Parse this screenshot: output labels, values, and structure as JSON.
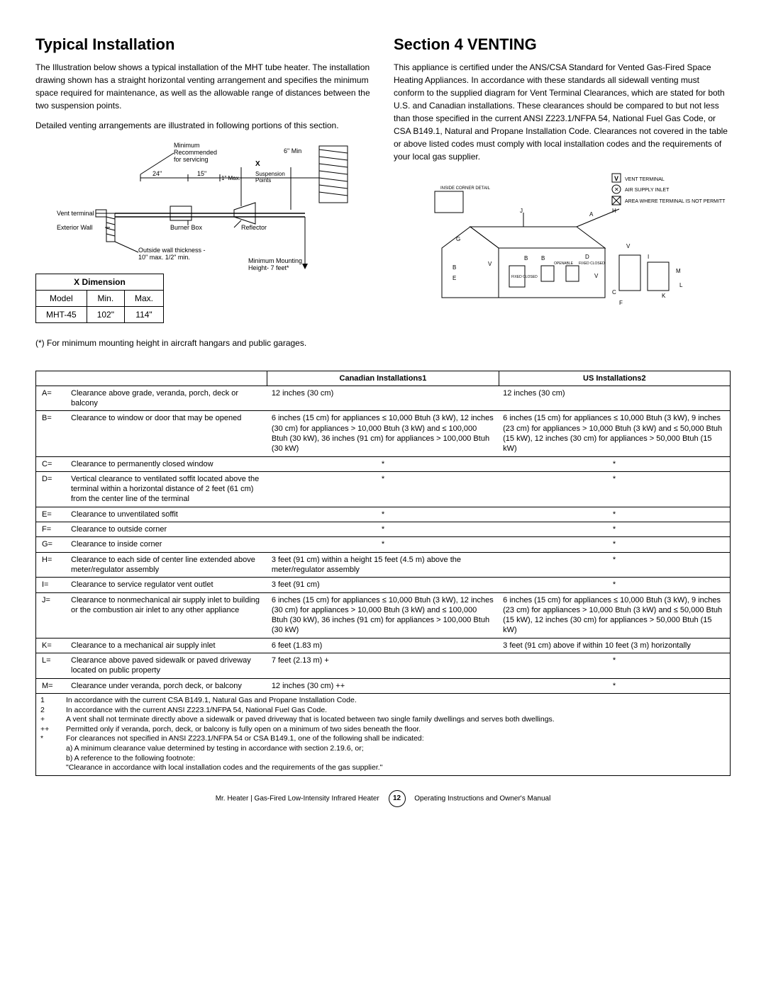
{
  "left": {
    "heading": "Typical Installation",
    "p1": "The Illustration below shows a typical installation of the MHT tube heater. The installation drawing shown has a straight horizontal venting arrangement and specifies the minimum space required for maintenance, as well as the allowable range of distances between the two suspension points.",
    "p2": "Detailed venting arrangements are illustrated in following portions of this section.",
    "diagram": {
      "min_rec": "Minimum Recommended for servicing",
      "six_min": "6\" Min",
      "dim24": "24\"",
      "dim15": "15\"",
      "one_max": "1\" Max.",
      "x_label": "X",
      "susp": "Suspension Points",
      "vent": "Vent terminal",
      "ext_wall": "Exterior Wall",
      "burner": "Burner Box",
      "reflector": "Reflector",
      "wall_thick": "Outside wall thickness - 10\" max. 1/2\" min.",
      "min_mount": "Minimum Mounting Height- 7 feet*"
    },
    "xtable": {
      "title": "X Dimension",
      "h_model": "Model",
      "h_min": "Min.",
      "h_max": "Max.",
      "model": "MHT-45",
      "min": "102\"",
      "max": "114\""
    },
    "footnote": "(*) For minimum mounting height in aircraft hangars and public garages."
  },
  "right": {
    "heading": "Section 4 VENTING",
    "p1": "This appliance is certified under the ANS/CSA Standard for Vented Gas-Fired Space Heating Appliances. In accordance with these standards all sidewall venting must conform to the supplied diagram for Vent Terminal Clearances, which are stated for both U.S. and Canadian installations. These clearances should be compared to but not less than those specified in the current ANSI Z223.1/NFPA 54, National Fuel Gas Code, or CSA B149.1, Natural and Propane Installation Code. Clearances not covered in the table or above listed codes must comply with local installation codes and the requirements of your local gas supplier.",
    "legend": {
      "v": "VENT TERMINAL",
      "x": "AIR SUPPLY INLET",
      "area": "AREA WHERE TERMINAL IS NOT PERMITTED"
    },
    "house_labels": {
      "inside": "INSIDE CORNER DETAIL",
      "fixed": "FIXED CLOSED",
      "openable": "OPENABLE"
    }
  },
  "table": {
    "h_can": "Canadian Installations1",
    "h_us": "US Installations2",
    "rows": [
      {
        "k": "A=",
        "d": "Clearance above grade, veranda, porch, deck or balcony",
        "c": "12 inches (30 cm)",
        "u": "12 inches (30 cm)"
      },
      {
        "k": "B=",
        "d": "Clearance to window or door that may be opened",
        "c": "6 inches (15 cm) for appliances ≤ 10,000 Btuh (3 kW), 12 inches (30 cm) for appliances > 10,000 Btuh (3 kW) and ≤ 100,000 Btuh (30 kW), 36 inches (91 cm) for appliances > 100,000 Btuh (30 kW)",
        "u": "6 inches (15 cm) for appliances ≤ 10,000 Btuh (3 kW), 9 inches (23 cm) for appliances > 10,000 Btuh (3 kW) and ≤ 50,000 Btuh (15 kW), 12 inches (30 cm) for appliances > 50,000 Btuh (15 kW)"
      },
      {
        "k": "C=",
        "d": "Clearance to permanently closed window",
        "c": "*",
        "u": "*",
        "star": true
      },
      {
        "k": "D=",
        "d": "Vertical clearance to ventilated soffit located above the terminal within a horizontal distance of 2 feet (61 cm) from the center line of the terminal",
        "c": "*",
        "u": "*",
        "star": true
      },
      {
        "k": "E=",
        "d": "Clearance to unventilated soffit",
        "c": "*",
        "u": "*",
        "star": true
      },
      {
        "k": "F=",
        "d": "Clearance to outside corner",
        "c": "*",
        "u": "*",
        "star": true
      },
      {
        "k": "G=",
        "d": "Clearance to inside corner",
        "c": "*",
        "u": "*",
        "star": true
      },
      {
        "k": "H=",
        "d": "Clearance to each side of center line extended above meter/regulator assembly",
        "c": "3 feet (91 cm) within a height 15 feet (4.5 m) above the meter/regulator assembly",
        "u": "*",
        "ustar": true
      },
      {
        "k": "I=",
        "d": "Clearance to service regulator vent outlet",
        "c": "3 feet (91 cm)",
        "u": "*",
        "ustar": true
      },
      {
        "k": "J=",
        "d": "Clearance to nonmechanical air supply inlet to building or the combustion air inlet to any other appliance",
        "c": "6 inches (15 cm) for appliances ≤ 10,000 Btuh (3 kW), 12 inches (30 cm) for appliances > 10,000 Btuh (3 kW) and ≤ 100,000 Btuh (30 kW), 36 inches (91 cm) for appliances > 100,000 Btuh (30 kW)",
        "u": "6 inches (15 cm) for appliances ≤ 10,000 Btuh (3 kW), 9 inches (23 cm) for appliances > 10,000 Btuh (3 kW) and ≤ 50,000 Btuh (15 kW), 12 inches (30 cm) for appliances > 50,000 Btuh (15 kW)"
      },
      {
        "k": "K=",
        "d": "Clearance to a mechanical air supply inlet",
        "c": "6 feet (1.83 m)",
        "u": "3 feet (91 cm) above if within 10 feet (3 m) horizontally"
      },
      {
        "k": "L=",
        "d": "Clearance above paved sidewalk or paved driveway located on public property",
        "c": "7 feet (2.13 m) +",
        "u": "*",
        "ustar": true
      },
      {
        "k": "M=",
        "d": "Clearance under veranda, porch deck, or balcony",
        "c": "12 inches (30 cm) ++",
        "u": "*",
        "ustar": true
      }
    ],
    "footnotes": [
      {
        "k": "1",
        "t": "In accordance with the current CSA B149.1, Natural Gas and Propane Installation Code."
      },
      {
        "k": "2",
        "t": "In accordance with the current ANSI Z223.1/NFPA 54, National Fuel Gas Code."
      },
      {
        "k": "+",
        "t": "A vent shall not terminate directly above a sidewalk or paved driveway that is located between two single family dwellings and serves both dwellings."
      },
      {
        "k": "++",
        "t": "Permitted only if veranda, porch, deck, or balcony is fully open on a minimum of two sides beneath the floor."
      },
      {
        "k": "*",
        "t": "For clearances not specified in ANSI Z223.1/NFPA 54 or CSA B149.1, one of the following shall be indicated:"
      },
      {
        "k": "",
        "t": "a) A minimum clearance value determined by testing in accordance with section 2.19.6, or;"
      },
      {
        "k": "",
        "t": "b) A reference to the following footnote:"
      },
      {
        "k": "",
        "t": "\"Clearance in accordance with local installation codes and the requirements of the gas supplier.\""
      }
    ]
  },
  "footer": {
    "left": "Mr. Heater | Gas-Fired Low-Intensity Infrared Heater",
    "page": "12",
    "right": "Operating Instructions and Owner's Manual"
  }
}
